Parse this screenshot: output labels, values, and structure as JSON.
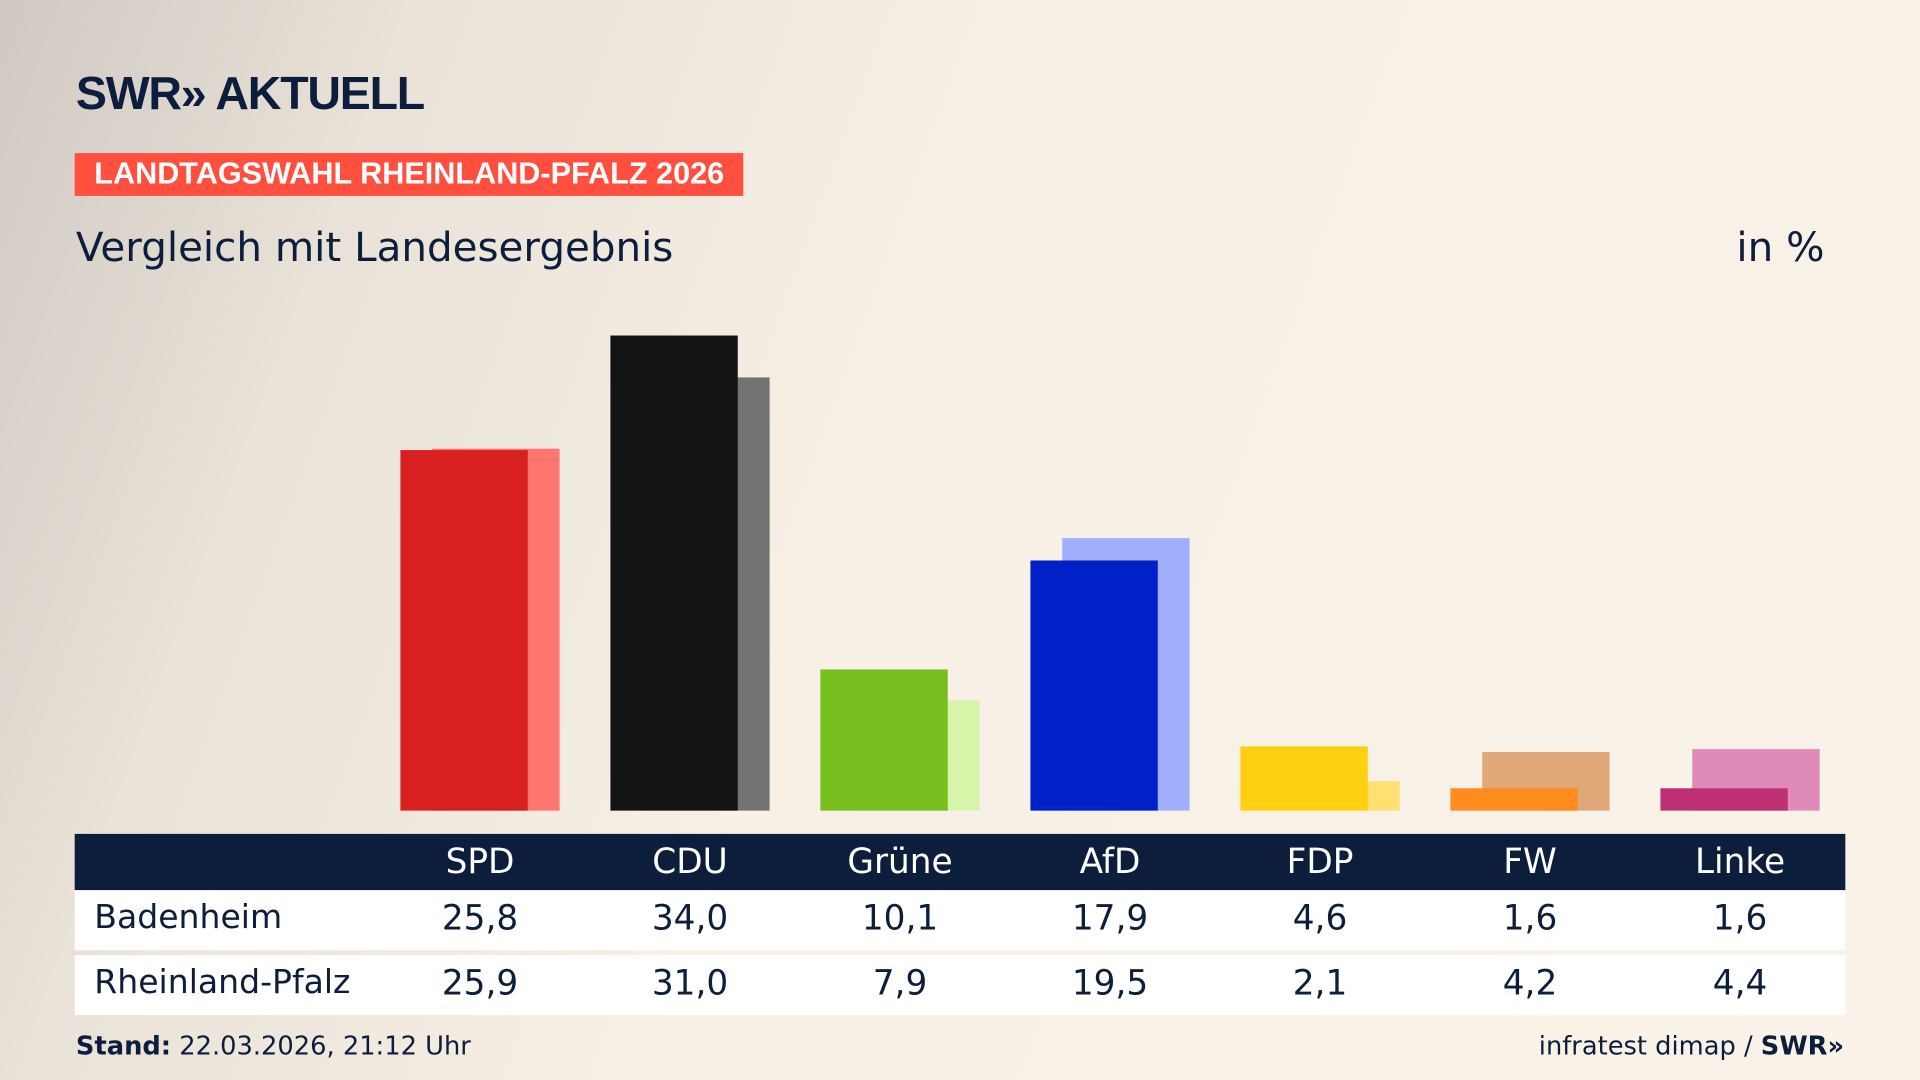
{
  "header": {
    "logo": "SWR» AKTUELL",
    "banner": "LANDTAGSWAHL RHEINLAND-PFALZ 2026",
    "subtitle": "Vergleich mit Landesergebnis",
    "unit": "in %"
  },
  "chart_data": {
    "type": "bar",
    "categories": [
      "SPD",
      "CDU",
      "Grüne",
      "AfD",
      "FDP",
      "FW",
      "Linke"
    ],
    "series": [
      {
        "name": "Badenheim",
        "values": [
          25.8,
          34.0,
          10.1,
          17.9,
          4.6,
          1.6,
          1.6
        ],
        "display": [
          "25,8",
          "34,0",
          "10,1",
          "17,9",
          "4,6",
          "1,6",
          "1,6"
        ],
        "colors": [
          "#d82020",
          "#141414",
          "#78be1e",
          "#0020c8",
          "#ffd010",
          "#ff8c1e",
          "#be3075"
        ]
      },
      {
        "name": "Rheinland-Pfalz",
        "values": [
          25.9,
          31.0,
          7.9,
          19.5,
          2.1,
          4.2,
          4.4
        ],
        "display": [
          "25,9",
          "31,0",
          "7,9",
          "19,5",
          "2,1",
          "4,2",
          "4,4"
        ],
        "colors": [
          "#ff7670",
          "#737373",
          "#d6f5a8",
          "#a0aefc",
          "#ffe070",
          "#e0a878",
          "#e08ab8"
        ]
      }
    ],
    "ylim": [
      0,
      34
    ]
  },
  "footer": {
    "label": "Stand:",
    "value": " 22.03.2026, 21:12 Uhr",
    "source": "infratest dimap / ",
    "source_logo": "SWR»"
  }
}
